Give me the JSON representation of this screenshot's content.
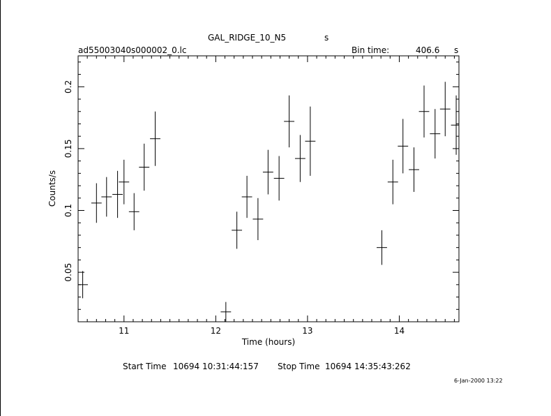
{
  "header": {
    "object": "GAL_RIDGE_10_N5",
    "object_suffix": "s",
    "filename": "ad55003040s000002_0.lc",
    "bin_label": "Bin time:",
    "bin_value": "406.6",
    "bin_unit": "s"
  },
  "footer": {
    "start_label": "Start Time",
    "start_value": "10694 10:31:44:157",
    "stop_label": "Stop Time",
    "stop_value": "10694 14:35:43:262",
    "stamp": "6-Jan-2000 13:22"
  },
  "chart_data": {
    "type": "scatter",
    "title": "GAL_RIDGE_10_N5",
    "xlabel": "Time (hours)",
    "ylabel": "Counts/s",
    "xlim": [
      10.5,
      14.65
    ],
    "ylim": [
      0.01,
      0.225
    ],
    "x_ticks": [
      11,
      12,
      13,
      14
    ],
    "x_tick_labels": [
      "11",
      "12",
      "13",
      "14"
    ],
    "y_ticks": [
      0.05,
      0.1,
      0.15,
      0.2
    ],
    "y_tick_labels": [
      "0.05",
      "0.1",
      "0.15",
      "0.2"
    ],
    "x_error": 0.0565,
    "points": [
      {
        "x": 10.55,
        "y": 0.04,
        "yerr": 0.011
      },
      {
        "x": 10.7,
        "y": 0.106,
        "yerr": 0.016
      },
      {
        "x": 10.81,
        "y": 0.111,
        "yerr": 0.016
      },
      {
        "x": 10.93,
        "y": 0.113,
        "yerr": 0.019
      },
      {
        "x": 11.0,
        "y": 0.123,
        "yerr": 0.018
      },
      {
        "x": 11.11,
        "y": 0.099,
        "yerr": 0.015
      },
      {
        "x": 11.22,
        "y": 0.135,
        "yerr": 0.019
      },
      {
        "x": 11.34,
        "y": 0.158,
        "yerr": 0.022
      },
      {
        "x": 12.11,
        "y": 0.018,
        "yerr": 0.008
      },
      {
        "x": 12.23,
        "y": 0.084,
        "yerr": 0.015
      },
      {
        "x": 12.34,
        "y": 0.111,
        "yerr": 0.017
      },
      {
        "x": 12.46,
        "y": 0.093,
        "yerr": 0.017
      },
      {
        "x": 12.57,
        "y": 0.131,
        "yerr": 0.018
      },
      {
        "x": 12.69,
        "y": 0.126,
        "yerr": 0.018
      },
      {
        "x": 12.8,
        "y": 0.172,
        "yerr": 0.021
      },
      {
        "x": 12.92,
        "y": 0.142,
        "yerr": 0.019
      },
      {
        "x": 13.03,
        "y": 0.156,
        "yerr": 0.028
      },
      {
        "x": 13.81,
        "y": 0.07,
        "yerr": 0.014
      },
      {
        "x": 13.93,
        "y": 0.123,
        "yerr": 0.018
      },
      {
        "x": 14.04,
        "y": 0.152,
        "yerr": 0.022
      },
      {
        "x": 14.16,
        "y": 0.133,
        "yerr": 0.018
      },
      {
        "x": 14.27,
        "y": 0.18,
        "yerr": 0.021
      },
      {
        "x": 14.39,
        "y": 0.162,
        "yerr": 0.02
      },
      {
        "x": 14.5,
        "y": 0.182,
        "yerr": 0.022
      },
      {
        "x": 14.62,
        "y": 0.169,
        "yerr": 0.024
      }
    ]
  }
}
